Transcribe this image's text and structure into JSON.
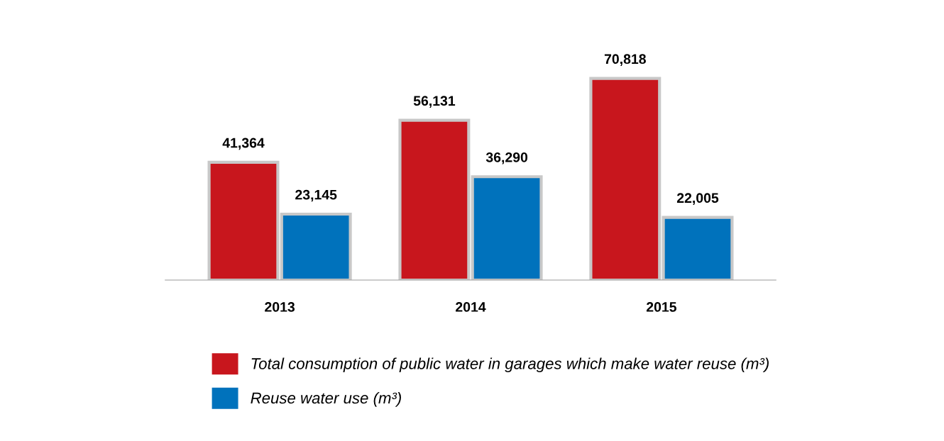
{
  "chart_data": {
    "type": "bar",
    "categories": [
      "2013",
      "2014",
      "2015"
    ],
    "series": [
      {
        "name": "Total consumption of public water in garages which make water reuse (m³)",
        "color": "#c8161d",
        "values": [
          41364,
          56131,
          70818
        ],
        "value_labels": [
          "41,364",
          "56,131",
          "70,818"
        ]
      },
      {
        "name": "Reuse water use (m³)",
        "color": "#0072bc",
        "values": [
          23145,
          36290,
          22005
        ],
        "value_labels": [
          "23,145",
          "36,290",
          "22,005"
        ]
      }
    ],
    "legend": "bottom",
    "grid": false
  }
}
